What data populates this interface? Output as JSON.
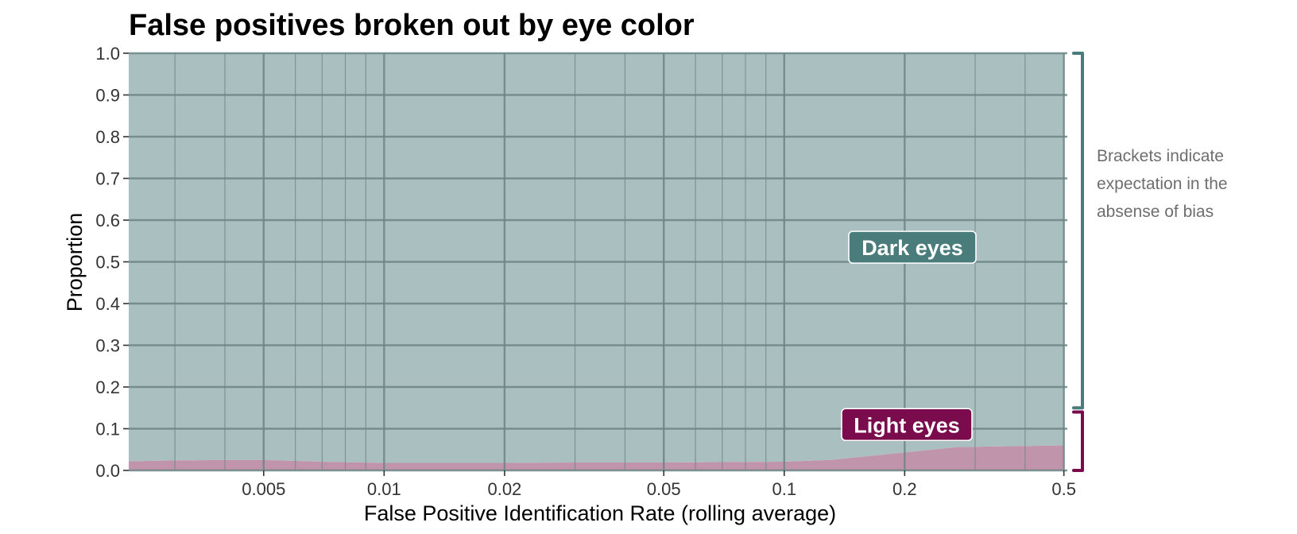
{
  "chart_data": {
    "type": "area",
    "title": "False positives broken out by eye color",
    "xlabel": "False Positive Identification Rate (rolling average)",
    "ylabel": "Proportion",
    "xscale": "log",
    "xlim": [
      0.0023,
      0.51
    ],
    "ylim": [
      0,
      1
    ],
    "stacked": true,
    "grid": true,
    "x_ticks": [
      0.005,
      0.01,
      0.02,
      0.05,
      0.1,
      0.2,
      0.5
    ],
    "x_tick_labels": [
      "0.005",
      "0.01",
      "0.02",
      "0.05",
      "0.1",
      "0.2",
      "0.5"
    ],
    "y_ticks": [
      0.0,
      0.1,
      0.2,
      0.3,
      0.4,
      0.5,
      0.6,
      0.7,
      0.8,
      0.9,
      1.0
    ],
    "y_tick_labels": [
      "0.0",
      "0.1",
      "0.2",
      "0.3",
      "0.4",
      "0.5",
      "0.6",
      "0.7",
      "0.8",
      "0.9",
      "1.0"
    ],
    "x": [
      0.0023,
      0.003,
      0.004,
      0.005,
      0.007,
      0.01,
      0.02,
      0.03,
      0.05,
      0.07,
      0.1,
      0.13,
      0.2,
      0.27,
      0.5
    ],
    "series": [
      {
        "name": "Light eyes",
        "color": "#7a0b4d",
        "fill": "#c095ab",
        "values": [
          0.022,
          0.024,
          0.025,
          0.025,
          0.021,
          0.018,
          0.018,
          0.019,
          0.019,
          0.02,
          0.021,
          0.025,
          0.043,
          0.056,
          0.06
        ]
      },
      {
        "name": "Dark eyes",
        "color": "#4a7c7c",
        "fill": "#aac0c0",
        "values": [
          0.978,
          0.976,
          0.975,
          0.975,
          0.979,
          0.982,
          0.982,
          0.981,
          0.981,
          0.98,
          0.979,
          0.975,
          0.957,
          0.944,
          0.94
        ]
      }
    ],
    "brackets": [
      {
        "series": "Dark eyes",
        "y_from": 0.15,
        "y_to": 1.0,
        "color": "#4a7c7c"
      },
      {
        "series": "Light eyes",
        "y_from": 0.0,
        "y_to": 0.14,
        "color": "#7a0b4d"
      }
    ],
    "annotation": [
      "Brackets indicate",
      "expectation in the",
      "absense of bias"
    ]
  }
}
